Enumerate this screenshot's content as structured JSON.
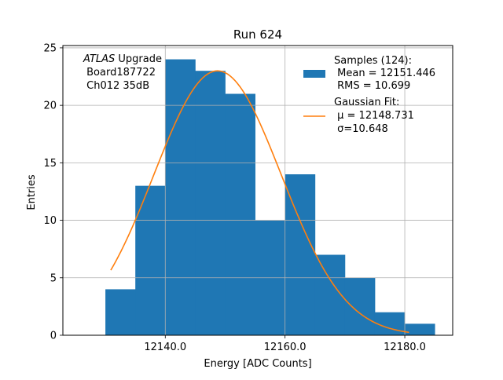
{
  "chart_data": {
    "type": "bar",
    "title": "Run 624",
    "xlabel": "Energy [ADC Counts]",
    "ylabel": "Entries",
    "xlim": [
      12122.9,
      12188.0
    ],
    "ylim": [
      0,
      25.2
    ],
    "xticks": [
      12140.0,
      12160.0,
      12180.0
    ],
    "xtick_labels": [
      "12140.0",
      "12160.0",
      "12180.0"
    ],
    "yticks": [
      0,
      5,
      10,
      15,
      20,
      25
    ],
    "ytick_labels": [
      "0",
      "5",
      "10",
      "15",
      "20",
      "25"
    ],
    "grid": true,
    "bins": [
      {
        "x0": 12130.0,
        "x1": 12135.0,
        "count": 4
      },
      {
        "x0": 12135.0,
        "x1": 12140.0,
        "count": 13
      },
      {
        "x0": 12140.0,
        "x1": 12145.0,
        "count": 24
      },
      {
        "x0": 12145.0,
        "x1": 12150.0,
        "count": 23
      },
      {
        "x0": 12150.0,
        "x1": 12155.0,
        "count": 21
      },
      {
        "x0": 12155.0,
        "x1": 12160.0,
        "count": 10
      },
      {
        "x0": 12160.0,
        "x1": 12165.0,
        "count": 14
      },
      {
        "x0": 12165.0,
        "x1": 12170.0,
        "count": 7
      },
      {
        "x0": 12170.0,
        "x1": 12175.0,
        "count": 5
      },
      {
        "x0": 12175.0,
        "x1": 12180.0,
        "count": 2
      },
      {
        "x0": 12180.0,
        "x1": 12185.0,
        "count": 1
      }
    ],
    "fit": {
      "mu": 12148.731,
      "sigma": 10.648,
      "amplitude": 23.0,
      "x_range": [
        12130.9,
        12180.7
      ]
    },
    "legend_placement": "top-right",
    "legend": {
      "samples": [
        "Samples (124):",
        " Mean = 12151.446",
        " RMS = 10.699"
      ],
      "fit": [
        "Gaussian Fit:",
        " μ = 12148.731",
        " σ=10.648"
      ]
    },
    "annotation": {
      "line1_italic": "ATLAS",
      "line1_rest": " Upgrade",
      "line2": " Board187722",
      "line3": " Ch012 35dB"
    },
    "colors": {
      "bar": "#1f77b4",
      "fit": "#ff7f0e",
      "grid": "#b0b0b0"
    }
  }
}
